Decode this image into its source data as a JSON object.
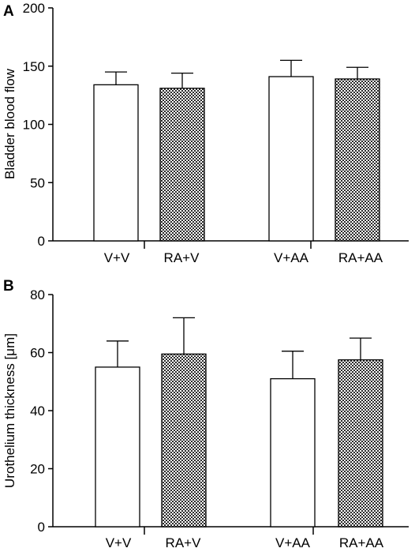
{
  "chart_data": [
    {
      "type": "bar",
      "panel_label": "A",
      "ylabel": "Bladder blood flow",
      "ylim": [
        0,
        200
      ],
      "yticks": [
        0,
        50,
        100,
        150,
        200
      ],
      "categories": [
        "V+V",
        "RA+V",
        "V+AA",
        "RA+AA"
      ],
      "values": [
        134,
        131,
        141,
        139
      ],
      "errors": [
        11,
        13,
        14,
        10
      ],
      "fills": [
        "white",
        "checker",
        "white",
        "checker"
      ],
      "grid": false
    },
    {
      "type": "bar",
      "panel_label": "B",
      "ylabel": "Urothelium thickness [μm]",
      "ylim": [
        0,
        80
      ],
      "yticks": [
        0,
        20,
        40,
        60,
        80
      ],
      "categories": [
        "V+V",
        "RA+V",
        "V+AA",
        "RA+AA"
      ],
      "values": [
        55,
        59.5,
        51,
        57.5
      ],
      "errors": [
        9,
        12.5,
        9.5,
        7.5
      ],
      "fills": [
        "white",
        "checker",
        "white",
        "checker"
      ],
      "grid": false
    }
  ]
}
